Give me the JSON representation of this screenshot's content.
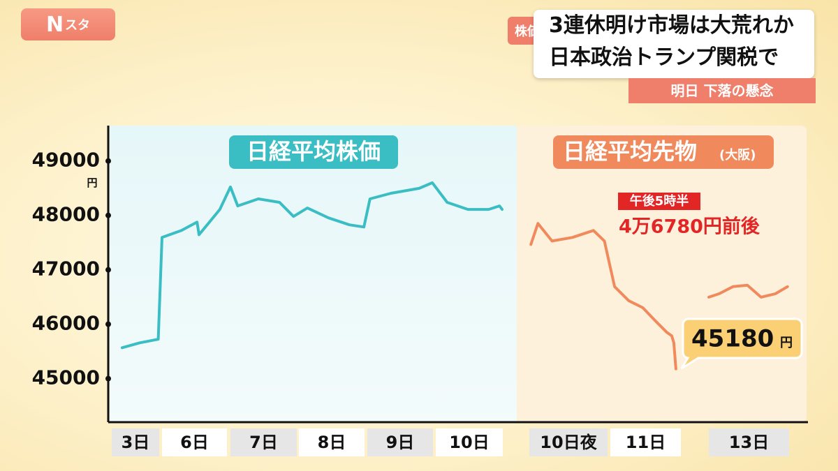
{
  "header": {
    "logo_main": "N",
    "logo_sub": "スタ",
    "tag": "株価",
    "headline": [
      "3連休明け市場は大荒れか",
      "日本政治トランプ関税で"
    ],
    "subheadline": "明日 下落の懸念"
  },
  "chart_data": {
    "type": "line",
    "categories": [
      "3日",
      "6日",
      "7日",
      "8日",
      "9日",
      "10日",
      "10日夜",
      "11日",
      "13日"
    ],
    "xlim": [
      0,
      9
    ],
    "ylim": [
      44200,
      49650
    ],
    "yticks": [
      45000,
      46000,
      47000,
      48000,
      49000
    ],
    "y_unit": "円",
    "series": [
      {
        "name": "日経平均株価",
        "color": "#3bbdc4",
        "x": [
          0.22,
          0.59,
          0.98,
          1.0,
          1.3,
          1.54,
          1.57,
          1.73,
          1.89,
          2.0,
          2.11,
          2.42,
          2.74,
          2.95,
          3.13,
          3.45,
          3.77,
          3.99,
          4.04,
          4.36,
          4.79,
          4.99,
          5.17,
          5.48,
          5.79,
          5.95,
          5.99
        ],
        "values": [
          45568,
          45658,
          45723,
          47594,
          47723,
          47877,
          47645,
          47877,
          48110,
          48523,
          48174,
          48303,
          48239,
          47981,
          48135,
          47955,
          47826,
          47787,
          48303,
          48406,
          48497,
          48600,
          48239,
          48110,
          48110,
          48174,
          48110
        ]
      },
      {
        "name": "日経平均先物",
        "name_note": "(大阪)",
        "color": "#f08a5d",
        "x": [
          6.02,
          6.11,
          6.29,
          6.55,
          6.82,
          6.96,
          7.06,
          7.26,
          7.46,
          7.65,
          7.8,
          7.87,
          7.9,
          7.93,
          7.97,
          8.0,
          8.13,
          8.3,
          8.48,
          8.65,
          8.83,
          8.98
        ],
        "values": [
          47465,
          47852,
          47529,
          47594,
          47723,
          47529,
          46690,
          46432,
          46303,
          46045,
          45852,
          45787,
          45658,
          45180,
          null,
          46497,
          46561,
          46690,
          46716,
          46497,
          46561,
          46690
        ]
      }
    ],
    "annotations": {
      "time": "午後5時半",
      "estimate": "4万6780円前後",
      "last": "45180",
      "last_unit": "円"
    }
  }
}
